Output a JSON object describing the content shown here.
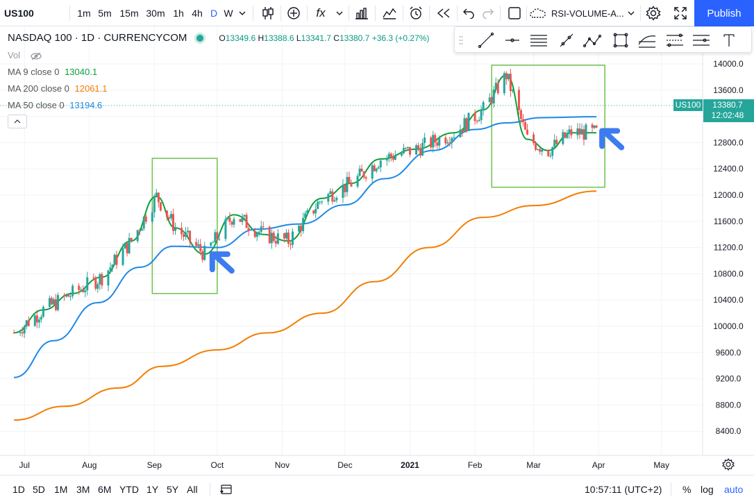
{
  "toolbar": {
    "symbol": "US100",
    "intervals": [
      "1m",
      "5m",
      "15m",
      "30m",
      "1h",
      "4h",
      "D",
      "W"
    ],
    "active_interval": "D",
    "fx_label": "fx",
    "indicator_template": "RSI-VOLUME-A...",
    "publish_label": "Publish"
  },
  "legend": {
    "title": "NASDAQ 100 · 1D · CURRENCYCOM",
    "ohlc": {
      "o_label": "O",
      "o": "13349.6",
      "h_label": "H",
      "h": "13388.6",
      "l_label": "L",
      "l": "13341.7",
      "c_label": "C",
      "c": "13380.7",
      "change": "+36.3 (+0.27%)"
    },
    "vol_label": "Vol",
    "ma": [
      {
        "label": "MA 9 close 0",
        "value": "13040.1",
        "color": "#0b9f37"
      },
      {
        "label": "MA 200 close 0",
        "value": "12061.1",
        "color": "#f57c00"
      },
      {
        "label": "MA 50 close 0",
        "value": "13194.6",
        "color": "#1e88e5"
      }
    ]
  },
  "price_scale": {
    "ticks": [
      "14000.0",
      "13600.0",
      "13200.0",
      "12800.0",
      "12400.0",
      "12000.0",
      "11600.0",
      "11200.0",
      "10800.0",
      "10400.0",
      "10000.0",
      "9600.0",
      "9200.0",
      "8800.0",
      "8400.0"
    ],
    "symbol_tag": "US100",
    "last_price": "13380.7",
    "countdown": "12:02:48"
  },
  "time_scale": {
    "ticks": [
      "Jul",
      "Aug",
      "Sep",
      "Oct",
      "Nov",
      "Dec",
      "2021",
      "Feb",
      "Mar",
      "Apr",
      "May"
    ]
  },
  "bottom_bar": {
    "ranges": [
      "1D",
      "5D",
      "1M",
      "3M",
      "6M",
      "YTD",
      "1Y",
      "5Y",
      "All"
    ],
    "clock": "10:57:11 (UTC+2)",
    "percent_label": "%",
    "log_label": "log",
    "auto_label": "auto"
  },
  "chart_data": {
    "type": "candlestick",
    "title": "NASDAQ 100, 1D, CURRENCYCOM",
    "ylim": [
      8200,
      14200
    ],
    "up_color": "#26a69a",
    "down_color": "#ef5350",
    "series": [
      {
        "name": "MA 9 close 0",
        "color": "#0b9f37",
        "x": [
          "2020-06-26",
          "2020-07-10",
          "2020-07-24",
          "2020-08-07",
          "2020-08-21",
          "2020-09-02",
          "2020-09-11",
          "2020-09-25",
          "2020-10-09",
          "2020-10-23",
          "2020-11-04",
          "2020-11-20",
          "2020-12-04",
          "2020-12-18",
          "2021-01-04",
          "2021-01-22",
          "2021-02-05",
          "2021-02-16",
          "2021-02-26",
          "2021-03-08",
          "2021-03-19",
          "2021-03-31"
        ],
        "values": [
          9900,
          10250,
          10500,
          10750,
          11300,
          11980,
          11500,
          11100,
          11700,
          11400,
          11300,
          11950,
          12180,
          12550,
          12700,
          12950,
          13300,
          13830,
          12850,
          12680,
          12950,
          12950
        ]
      },
      {
        "name": "MA 50 close 0",
        "color": "#1e88e5",
        "x": [
          "2020-06-26",
          "2020-07-15",
          "2020-08-05",
          "2020-08-25",
          "2020-09-10",
          "2020-10-01",
          "2020-10-20",
          "2020-11-10",
          "2020-12-01",
          "2020-12-20",
          "2021-01-12",
          "2021-02-01",
          "2021-02-16",
          "2021-03-05",
          "2021-03-31"
        ],
        "values": [
          9220,
          9780,
          10360,
          10900,
          11220,
          11200,
          11480,
          11560,
          11850,
          12250,
          12680,
          13000,
          13100,
          13180,
          13195
        ]
      },
      {
        "name": "MA 200 close 0",
        "color": "#f57c00",
        "x": [
          "2020-06-26",
          "2020-07-20",
          "2020-08-15",
          "2020-09-05",
          "2020-10-01",
          "2020-10-25",
          "2020-11-20",
          "2020-12-15",
          "2021-01-10",
          "2021-02-05",
          "2021-03-01",
          "2021-03-31"
        ],
        "values": [
          8570,
          8780,
          9060,
          9390,
          9640,
          9900,
          10200,
          10680,
          11200,
          11660,
          11840,
          12061
        ]
      }
    ],
    "highlight_boxes": [
      {
        "from": "2020-08-31",
        "to": "2020-10-01"
      },
      {
        "from": "2021-02-09",
        "to": "2021-04-04"
      }
    ],
    "annotation_color": "#3d7bf0"
  }
}
